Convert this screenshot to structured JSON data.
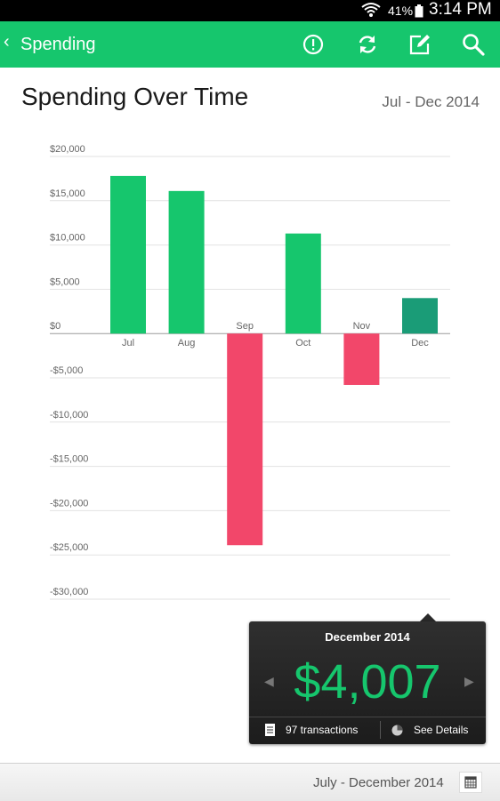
{
  "status_bar": {
    "battery": "41%",
    "time": "3:14 PM"
  },
  "app_bar": {
    "title": "Spending",
    "actions": [
      "alert-icon",
      "refresh-icon",
      "edit-icon",
      "search-icon"
    ]
  },
  "header": {
    "title": "Spending Over Time",
    "date_range": "Jul - Dec 2014"
  },
  "chart_data": {
    "type": "bar",
    "categories": [
      "Jul",
      "Aug",
      "Sep",
      "Oct",
      "Nov",
      "Dec"
    ],
    "values": [
      17800,
      16100,
      -23900,
      11300,
      -5800,
      4007
    ],
    "selected_index": 5,
    "ylim": [
      -30000,
      20000
    ],
    "yticks": [
      20000,
      15000,
      10000,
      5000,
      0,
      -5000,
      -10000,
      -15000,
      -20000,
      -25000,
      -30000
    ],
    "ytick_labels": [
      "$20,000",
      "$15,000",
      "$10,000",
      "$5,000",
      "$0",
      "-$5,000",
      "-$10,000",
      "-$15,000",
      "-$20,000",
      "-$25,000",
      "-$30,000"
    ],
    "grid": true,
    "colors": {
      "positive": "#16c66d",
      "negative": "#f2476a",
      "selected": "#1a9c77"
    }
  },
  "tooltip": {
    "month": "December 2014",
    "amount": "$4,007",
    "transactions": "97 transactions",
    "details": "See Details"
  },
  "footer": {
    "range": "July - December 2014"
  }
}
